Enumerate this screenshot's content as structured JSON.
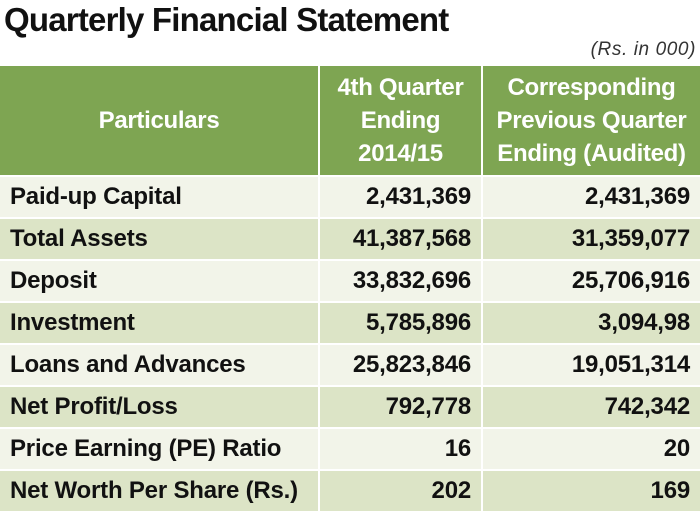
{
  "title": "Quarterly Financial Statement",
  "units_note": "(Rs. in 000)",
  "colors": {
    "header_bg": "#7ea552",
    "row_light": "#f2f4e9",
    "row_dark": "#dce4c6"
  },
  "table": {
    "headers": {
      "particulars": "Particulars",
      "current_quarter": [
        "4th Quarter",
        "Ending",
        "2014/15"
      ],
      "previous_quarter": [
        "Corresponding",
        "Previous Quarter",
        "Ending (Audited)"
      ]
    },
    "rows": [
      {
        "label": "Paid-up Capital",
        "current": "2,431,369",
        "previous": "2,431,369"
      },
      {
        "label": "Total Assets",
        "current": "41,387,568",
        "previous": "31,359,077"
      },
      {
        "label": "Deposit",
        "current": "33,832,696",
        "previous": "25,706,916"
      },
      {
        "label": "Investment",
        "current": "5,785,896",
        "previous": "3,094,98"
      },
      {
        "label": "Loans and Advances",
        "current": "25,823,846",
        "previous": "19,051,314"
      },
      {
        "label": "Net Profit/Loss",
        "current": "792,778",
        "previous": "742,342"
      },
      {
        "label": "Price Earning (PE) Ratio",
        "current": "16",
        "previous": "20"
      },
      {
        "label": "Net Worth Per Share (Rs.)",
        "current": "202",
        "previous": "169"
      }
    ]
  }
}
